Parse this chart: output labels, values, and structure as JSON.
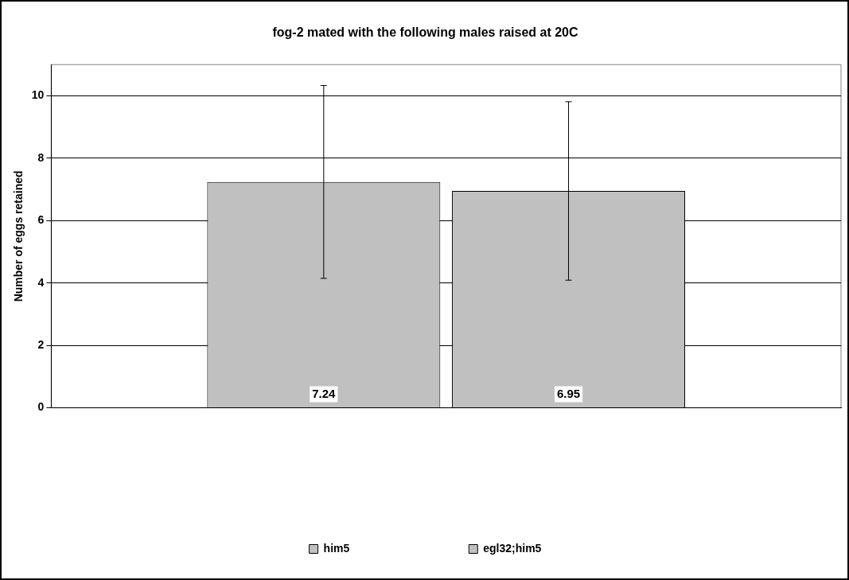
{
  "chart_data": {
    "type": "bar",
    "title": "fog-2 mated with the following males raised at 20C",
    "ylabel": "Number of eggs retained",
    "categories": [
      null
    ],
    "series": [
      {
        "name": "him5",
        "color": "#c0c0c0",
        "values": [
          7.24
        ],
        "errors": [
          3.09
        ]
      },
      {
        "name": "egl32;him5",
        "color": "#c0c0c0",
        "values": [
          6.95
        ],
        "errors": [
          2.86
        ]
      }
    ],
    "ylim": [
      0,
      11
    ],
    "yticks": [
      0,
      2,
      4,
      6,
      8,
      10
    ],
    "grid": "y",
    "legend": "bottom",
    "data_labels": true
  }
}
